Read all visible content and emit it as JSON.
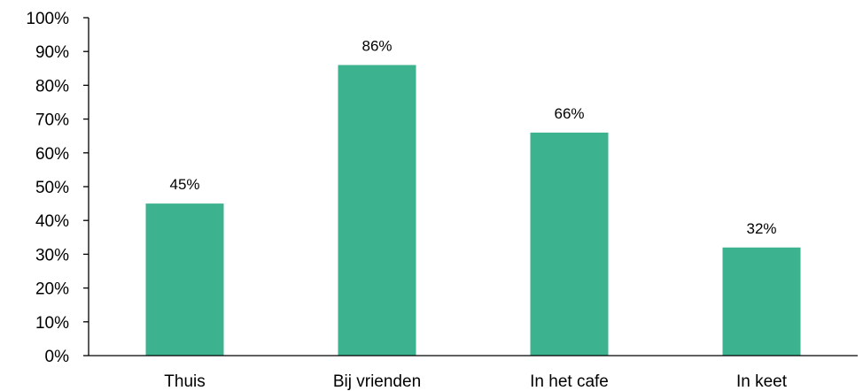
{
  "chart_data": {
    "type": "bar",
    "title": "",
    "xlabel": "",
    "ylabel": "",
    "categories": [
      "Thuis",
      "Bij vrienden",
      "In het cafe",
      "In keet"
    ],
    "values": [
      45,
      86,
      66,
      32
    ],
    "value_labels": [
      "45%",
      "86%",
      "66%",
      "32%"
    ],
    "ylim": [
      0,
      100
    ],
    "y_ticks": [
      0,
      10,
      20,
      30,
      40,
      50,
      60,
      70,
      80,
      90,
      100
    ],
    "y_tick_labels": [
      "0%",
      "10%",
      "20%",
      "30%",
      "40%",
      "50%",
      "60%",
      "70%",
      "80%",
      "90%",
      "100%"
    ],
    "bar_color": "#3db28f",
    "grid": false,
    "legend": "none"
  }
}
